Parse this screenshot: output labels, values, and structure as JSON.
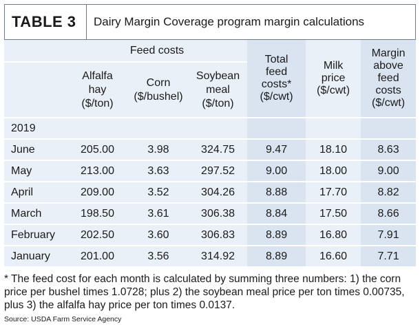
{
  "title": {
    "label": "TABLE 3",
    "caption": "Dairy Margin Coverage program margin calculations"
  },
  "header": {
    "group": "Feed costs",
    "columns": [
      "Alfalfa hay ($/ton)",
      "Corn ($/bushel)",
      "Soybean meal ($/ton)",
      "Total feed costs* ($/cwt)",
      "Milk price ($/cwt)",
      "Margin above feed costs ($/cwt)"
    ],
    "columns_lines": [
      [
        "Alfalfa",
        "hay",
        "($/ton)"
      ],
      [
        "Corn",
        "($/bushel)"
      ],
      [
        "Soybean",
        "meal",
        "($/ton)"
      ],
      [
        "Total",
        "feed",
        "costs*",
        "($/cwt)"
      ],
      [
        "Milk",
        "price",
        "($/cwt)"
      ],
      [
        "Margin",
        "above",
        "feed",
        "costs",
        "($/cwt)"
      ]
    ]
  },
  "year": "2019",
  "rows": [
    {
      "month": "June",
      "values": [
        "205.00",
        "3.98",
        "324.75",
        "9.47",
        "18.10",
        "8.63"
      ]
    },
    {
      "month": "May",
      "values": [
        "213.00",
        "3.63",
        "297.52",
        "9.00",
        "18.00",
        "9.00"
      ]
    },
    {
      "month": "April",
      "values": [
        "209.00",
        "3.52",
        "304.26",
        "8.88",
        "17.70",
        "8.82"
      ]
    },
    {
      "month": "March",
      "values": [
        "198.50",
        "3.61",
        "306.38",
        "8.84",
        "17.50",
        "8.66"
      ]
    },
    {
      "month": "February",
      "values": [
        "202.50",
        "3.60",
        "306.83",
        "8.89",
        "16.80",
        "7.91"
      ]
    },
    {
      "month": "January",
      "values": [
        "201.00",
        "3.56",
        "314.92",
        "8.89",
        "16.60",
        "7.71"
      ]
    }
  ],
  "footnote": "* The feed cost for each month is calculated by summing three numbers: 1) the corn price per bushel times 1.0728; plus 2) the soybean meal price per ton times 0.00735, plus 3) the alfalfa hay price per ton times 0.0137.",
  "source": "Source: USDA Farm Service Agency",
  "colors": {
    "header_mid": "#d9e4f0",
    "header_light": "#eaf0f7",
    "border": "#6a7a8c"
  }
}
